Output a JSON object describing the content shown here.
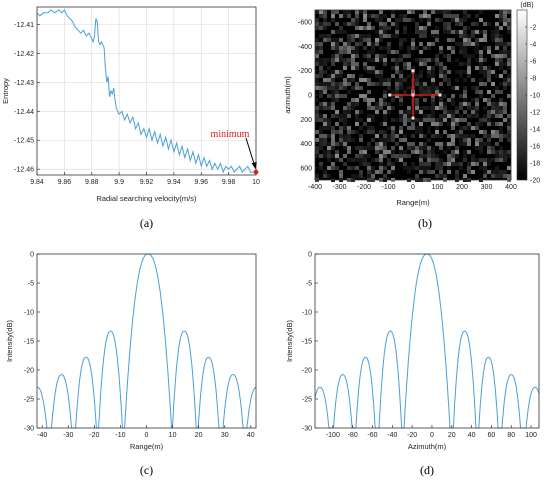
{
  "chart_data": [
    {
      "id": "a",
      "type": "line",
      "caption": "(a)",
      "xlabel": "Radial searching velocity(m/s)",
      "ylabel": "Entropy",
      "xlim": [
        9.84,
        10.0
      ],
      "ylim": [
        -12.462,
        -12.404
      ],
      "xticks": [
        9.84,
        9.86,
        9.88,
        9.9,
        9.92,
        9.94,
        9.96,
        9.98,
        10
      ],
      "xtick_labels": [
        "9.84",
        "9.86",
        "9.88",
        "9.9",
        "9.92",
        "9.94",
        "9.96",
        "9.98",
        "10"
      ],
      "yticks": [
        -12.41,
        -12.42,
        -12.43,
        -12.44,
        -12.45,
        -12.46
      ],
      "ytick_labels": [
        "-12.41",
        "-12.42",
        "-12.43",
        "-12.44",
        "-12.45",
        "-12.46"
      ],
      "grid": true,
      "series_color": "#4a9fd8",
      "x": [
        9.84,
        9.842,
        9.845,
        9.848,
        9.85,
        9.853,
        9.856,
        9.858,
        9.86,
        9.862,
        9.864,
        9.866,
        9.868,
        9.87,
        9.872,
        9.874,
        9.876,
        9.878,
        9.88,
        9.881,
        9.882,
        9.883,
        9.884,
        9.885,
        9.886,
        9.887,
        9.888,
        9.889,
        9.89,
        9.891,
        9.892,
        9.893,
        9.894,
        9.895,
        9.896,
        9.897,
        9.898,
        9.9,
        9.902,
        9.904,
        9.906,
        9.908,
        9.91,
        9.912,
        9.914,
        9.916,
        9.918,
        9.92,
        9.922,
        9.924,
        9.926,
        9.928,
        9.93,
        9.932,
        9.934,
        9.936,
        9.938,
        9.94,
        9.942,
        9.944,
        9.946,
        9.948,
        9.95,
        9.952,
        9.954,
        9.956,
        9.958,
        9.96,
        9.962,
        9.964,
        9.966,
        9.968,
        9.97,
        9.972,
        9.974,
        9.976,
        9.978,
        9.98,
        9.982,
        9.984,
        9.986,
        9.988,
        9.99,
        9.992,
        9.994,
        9.996,
        9.998,
        10.0
      ],
      "y": [
        -12.406,
        -12.407,
        -12.406,
        -12.406,
        -12.405,
        -12.406,
        -12.405,
        -12.406,
        -12.405,
        -12.407,
        -12.408,
        -12.409,
        -12.411,
        -12.412,
        -12.413,
        -12.412,
        -12.414,
        -12.413,
        -12.415,
        -12.416,
        -12.414,
        -12.408,
        -12.409,
        -12.416,
        -12.417,
        -12.416,
        -12.417,
        -12.418,
        -12.425,
        -12.43,
        -12.428,
        -12.435,
        -12.433,
        -12.434,
        -12.432,
        -12.436,
        -12.439,
        -12.441,
        -12.44,
        -12.443,
        -12.441,
        -12.444,
        -12.442,
        -12.446,
        -12.444,
        -12.448,
        -12.446,
        -12.449,
        -12.446,
        -12.45,
        -12.447,
        -12.451,
        -12.448,
        -12.452,
        -12.449,
        -12.453,
        -12.45,
        -12.454,
        -12.451,
        -12.455,
        -12.452,
        -12.456,
        -12.453,
        -12.457,
        -12.454,
        -12.458,
        -12.455,
        -12.459,
        -12.456,
        -12.459,
        -12.457,
        -12.46,
        -12.458,
        -12.46,
        -12.458,
        -12.461,
        -12.459,
        -12.46,
        -12.459,
        -12.461,
        -12.46,
        -12.459,
        -12.461,
        -12.46,
        -12.459,
        -12.461,
        -12.461,
        -12.4605
      ],
      "annotation": {
        "text": "minimum",
        "x": 10.0,
        "y": -12.461,
        "color": "#e02020"
      }
    },
    {
      "id": "b",
      "type": "heatmap",
      "caption": "(b)",
      "xlabel": "Range(m)",
      "ylabel": "azimuth(m)",
      "xlim": [
        -400,
        400
      ],
      "ylim": [
        -700,
        700
      ],
      "xticks": [
        -400,
        -300,
        -200,
        -100,
        0,
        100,
        200,
        300,
        400
      ],
      "xtick_labels": [
        "-400",
        "-300",
        "-200",
        "-100",
        "0",
        "100",
        "200",
        "300",
        "400"
      ],
      "yticks": [
        -600,
        -400,
        -200,
        0,
        200,
        400,
        600
      ],
      "ytick_labels": [
        "-600",
        "-400",
        "-200",
        "0",
        "200",
        "400",
        "600"
      ],
      "colorbar": {
        "label": "(dB)",
        "ticks": [
          -2,
          -4,
          -6,
          -8,
          -10,
          -12,
          -14,
          -16,
          -18,
          -20
        ],
        "tick_labels": [
          "-2",
          "-4",
          "-6",
          "-8",
          "-10",
          "-12",
          "-14",
          "-16",
          "-18",
          "-20"
        ],
        "range": [
          -20,
          0
        ]
      },
      "target_color": "#d42020"
    },
    {
      "id": "c",
      "type": "line",
      "caption": "(c)",
      "xlabel": "Range(m)",
      "ylabel": "Intensity(dB)",
      "xlim": [
        -42,
        42
      ],
      "ylim": [
        -30,
        0
      ],
      "xticks": [
        -40,
        -30,
        -20,
        -10,
        0,
        10,
        20,
        30,
        40
      ],
      "xtick_labels": [
        "-40",
        "-30",
        "-20",
        "-10",
        "0",
        "10",
        "20",
        "30",
        "40"
      ],
      "yticks": [
        0,
        -5,
        -10,
        -15,
        -20,
        -25,
        -30
      ],
      "ytick_labels": [
        "0",
        "-5",
        "-10",
        "-15",
        "-20",
        "-25",
        "-30"
      ],
      "series_color": "#4a9fd8",
      "lobes": [
        {
          "center": 0.6,
          "half_width": 9.5,
          "peak": 0.0
        },
        {
          "center": 14.5,
          "half_width": 5.0,
          "peak": -13.3
        },
        {
          "center": -13.8,
          "half_width": 5.0,
          "peak": -13.3
        },
        {
          "center": 23.8,
          "half_width": 4.5,
          "peak": -17.8
        },
        {
          "center": -23.2,
          "half_width": 4.5,
          "peak": -17.8
        },
        {
          "center": 33.2,
          "half_width": 4.5,
          "peak": -20.8
        },
        {
          "center": -32.6,
          "half_width": 4.5,
          "peak": -20.8
        },
        {
          "center": 42.2,
          "half_width": 4.5,
          "peak": -23.0
        },
        {
          "center": -41.9,
          "half_width": 4.5,
          "peak": -23.0
        }
      ]
    },
    {
      "id": "d",
      "type": "line",
      "caption": "(d)",
      "xlabel": "Azimuth(m)",
      "ylabel": "Intensity(dB)",
      "xlim": [
        -118,
        108
      ],
      "ylim": [
        -30,
        0
      ],
      "xticks": [
        -100,
        -80,
        -60,
        -40,
        -20,
        0,
        20,
        40,
        60,
        80,
        100
      ],
      "xtick_labels": [
        "-100",
        "-80",
        "-60",
        "-40",
        "-20",
        "0",
        "20",
        "40",
        "60",
        "80",
        "100"
      ],
      "yticks": [
        0,
        -5,
        -10,
        -15,
        -20,
        -25,
        -30
      ],
      "ytick_labels": [
        "0",
        "-5",
        "-10",
        "-15",
        "-20",
        "-25",
        "-30"
      ],
      "series_color": "#4a9fd8",
      "lobes": [
        {
          "center": -5.0,
          "half_width": 24.5,
          "peak": 0.0
        },
        {
          "center": 33.0,
          "half_width": 12.5,
          "peak": -13.3
        },
        {
          "center": -42.0,
          "half_width": 12.5,
          "peak": -13.3
        },
        {
          "center": 57.0,
          "half_width": 11.0,
          "peak": -17.8
        },
        {
          "center": -67.0,
          "half_width": 11.0,
          "peak": -17.8
        },
        {
          "center": 80.0,
          "half_width": 11.0,
          "peak": -20.8
        },
        {
          "center": -90.0,
          "half_width": 11.0,
          "peak": -20.8
        },
        {
          "center": 104.0,
          "half_width": 11.0,
          "peak": -23.0
        },
        {
          "center": -113.0,
          "half_width": 11.0,
          "peak": -23.0
        }
      ]
    }
  ]
}
